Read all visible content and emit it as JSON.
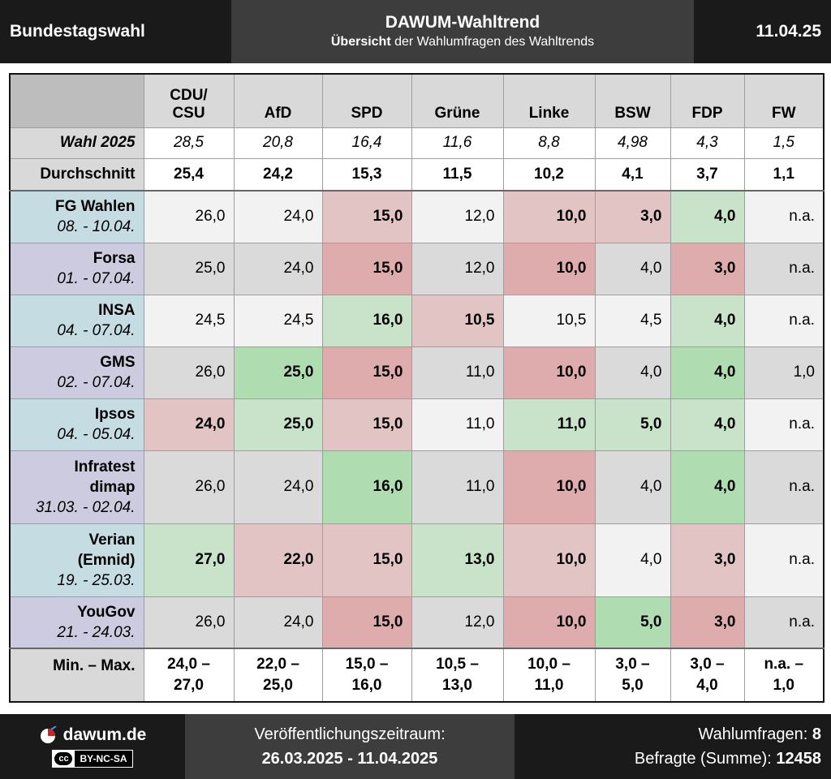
{
  "header": {
    "left": "Bundestagswahl",
    "title": "DAWUM-Wahltrend",
    "subtitle_bold": "Übersicht",
    "subtitle_rest": " der Wahlumfragen des Wahltrends",
    "date": "11.04.25"
  },
  "parties": [
    {
      "line1": "CDU/",
      "line2": "CSU"
    },
    {
      "line1": "",
      "line2": "AfD"
    },
    {
      "line1": "",
      "line2": "SPD"
    },
    {
      "line1": "",
      "line2": "Grüne"
    },
    {
      "line1": "",
      "line2": "Linke"
    },
    {
      "line1": "",
      "line2": "BSW"
    },
    {
      "line1": "",
      "line2": "FDP"
    },
    {
      "line1": "",
      "line2": "FW"
    }
  ],
  "wahl": {
    "label": "Wahl 2025",
    "values": [
      "28,5",
      "20,8",
      "16,4",
      "11,6",
      "8,8",
      "4,98",
      "4,3",
      "1,5"
    ]
  },
  "average": {
    "label": "Durchschnitt",
    "values": [
      "25,4",
      "24,2",
      "15,3",
      "11,5",
      "10,2",
      "4,1",
      "3,7",
      "1,1"
    ]
  },
  "colors": {
    "inst_teal": "#c5dde2",
    "inst_purple": "#cdcbe0",
    "g0": "#f2f2f2",
    "g1": "#dadada",
    "green_light": "#c9e3ca",
    "green_strong": "#afdcb0",
    "red_light": "#e2c4c4",
    "red_strong": "#deacac"
  },
  "institutes": [
    {
      "lines": [
        "FG Wahlen"
      ],
      "date": "08. - 10.04.",
      "tone": "teal",
      "cells": [
        [
          "26,0",
          "g0",
          false
        ],
        [
          "24,0",
          "g0",
          false
        ],
        [
          "15,0",
          "red_light",
          true
        ],
        [
          "12,0",
          "g0",
          false
        ],
        [
          "10,0",
          "red_light",
          true
        ],
        [
          "3,0",
          "red_light",
          true
        ],
        [
          "4,0",
          "green_light",
          true
        ],
        [
          "n.a.",
          "g0",
          false
        ]
      ]
    },
    {
      "lines": [
        "Forsa"
      ],
      "date": "01. - 07.04.",
      "tone": "purple",
      "cells": [
        [
          "25,0",
          "g1",
          false
        ],
        [
          "24,0",
          "g1",
          false
        ],
        [
          "15,0",
          "red_strong",
          true
        ],
        [
          "12,0",
          "g1",
          false
        ],
        [
          "10,0",
          "red_strong",
          true
        ],
        [
          "4,0",
          "g1",
          false
        ],
        [
          "3,0",
          "red_strong",
          true
        ],
        [
          "n.a.",
          "g1",
          false
        ]
      ]
    },
    {
      "lines": [
        "INSA"
      ],
      "date": "04. - 07.04.",
      "tone": "teal",
      "cells": [
        [
          "24,5",
          "g0",
          false
        ],
        [
          "24,5",
          "g0",
          false
        ],
        [
          "16,0",
          "green_light",
          true
        ],
        [
          "10,5",
          "red_light",
          true
        ],
        [
          "10,5",
          "g0",
          false
        ],
        [
          "4,5",
          "g0",
          false
        ],
        [
          "4,0",
          "green_light",
          true
        ],
        [
          "n.a.",
          "g0",
          false
        ]
      ]
    },
    {
      "lines": [
        "GMS"
      ],
      "date": "02. - 07.04.",
      "tone": "purple",
      "cells": [
        [
          "26,0",
          "g1",
          false
        ],
        [
          "25,0",
          "green_strong",
          true
        ],
        [
          "15,0",
          "red_strong",
          true
        ],
        [
          "11,0",
          "g1",
          false
        ],
        [
          "10,0",
          "red_strong",
          true
        ],
        [
          "4,0",
          "g1",
          false
        ],
        [
          "4,0",
          "green_strong",
          true
        ],
        [
          "1,0",
          "g1",
          false
        ]
      ]
    },
    {
      "lines": [
        "Ipsos"
      ],
      "date": "04. - 05.04.",
      "tone": "teal",
      "cells": [
        [
          "24,0",
          "red_light",
          true
        ],
        [
          "25,0",
          "green_light",
          true
        ],
        [
          "15,0",
          "red_light",
          true
        ],
        [
          "11,0",
          "g0",
          false
        ],
        [
          "11,0",
          "green_light",
          true
        ],
        [
          "5,0",
          "green_light",
          true
        ],
        [
          "4,0",
          "green_light",
          true
        ],
        [
          "n.a.",
          "g0",
          false
        ]
      ]
    },
    {
      "lines": [
        "Infratest",
        "dimap"
      ],
      "date": "31.03. - 02.04.",
      "tone": "purple",
      "cells": [
        [
          "26,0",
          "g1",
          false
        ],
        [
          "24,0",
          "g1",
          false
        ],
        [
          "16,0",
          "green_strong",
          true
        ],
        [
          "11,0",
          "g1",
          false
        ],
        [
          "10,0",
          "red_strong",
          true
        ],
        [
          "4,0",
          "g1",
          false
        ],
        [
          "4,0",
          "green_strong",
          true
        ],
        [
          "n.a.",
          "g1",
          false
        ]
      ]
    },
    {
      "lines": [
        "Verian",
        "(Emnid)"
      ],
      "date": "19. - 25.03.",
      "tone": "teal",
      "cells": [
        [
          "27,0",
          "green_light",
          true
        ],
        [
          "22,0",
          "red_light",
          true
        ],
        [
          "15,0",
          "red_light",
          true
        ],
        [
          "13,0",
          "green_light",
          true
        ],
        [
          "10,0",
          "red_light",
          true
        ],
        [
          "4,0",
          "g0",
          false
        ],
        [
          "3,0",
          "red_light",
          true
        ],
        [
          "n.a.",
          "g0",
          false
        ]
      ]
    },
    {
      "lines": [
        "YouGov"
      ],
      "date": "21. - 24.03.",
      "tone": "purple",
      "cells": [
        [
          "26,0",
          "g1",
          false
        ],
        [
          "24,0",
          "g1",
          false
        ],
        [
          "15,0",
          "red_strong",
          true
        ],
        [
          "12,0",
          "g1",
          false
        ],
        [
          "10,0",
          "red_strong",
          true
        ],
        [
          "5,0",
          "green_strong",
          true
        ],
        [
          "3,0",
          "red_strong",
          true
        ],
        [
          "n.a.",
          "g1",
          false
        ]
      ]
    }
  ],
  "minmax": {
    "label": "Min. – Max.",
    "values": [
      [
        "24,0 –",
        "27,0"
      ],
      [
        "22,0 –",
        "25,0"
      ],
      [
        "15,0 –",
        "16,0"
      ],
      [
        "10,5 –",
        "13,0"
      ],
      [
        "10,0 –",
        "11,0"
      ],
      [
        "3,0 –",
        "5,0"
      ],
      [
        "3,0 –",
        "4,0"
      ],
      [
        "n.a. –",
        "1,0"
      ]
    ]
  },
  "footer": {
    "brand": "dawum.de",
    "license": "BY-NC-SA",
    "cc_mark": "cc",
    "period_label": "Veröffentlichungszeitraum:",
    "period": "26.03.2025 - 11.04.2025",
    "polls_label": "Wahlumfragen: ",
    "polls": "8",
    "respondents_label": "Befragte (Summe): ",
    "respondents": "12458"
  }
}
